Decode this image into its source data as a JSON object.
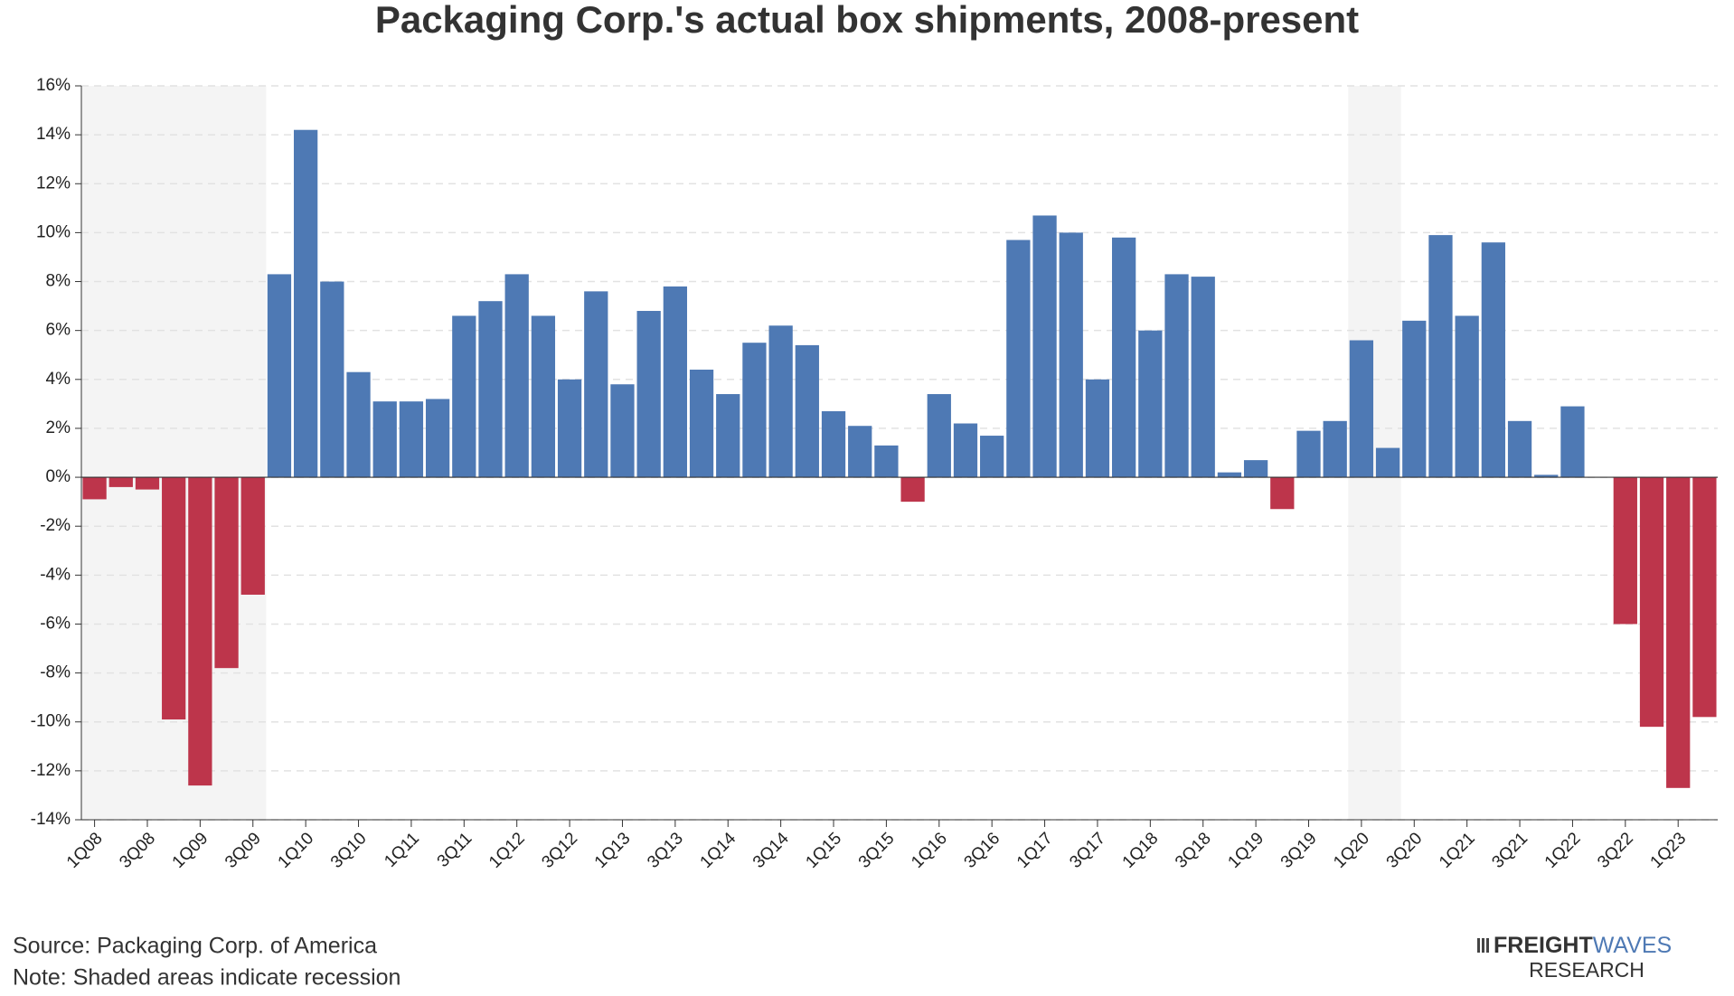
{
  "chart_data": {
    "type": "bar",
    "title": "Packaging Corp.'s actual box shipments, 2008-present",
    "categories": [
      "1Q08",
      null,
      "3Q08",
      null,
      "1Q09",
      null,
      "3Q09",
      null,
      "1Q10",
      null,
      "3Q10",
      null,
      "1Q11",
      null,
      "3Q11",
      null,
      "1Q12",
      null,
      "3Q12",
      null,
      "1Q13",
      null,
      "3Q13",
      null,
      "1Q14",
      null,
      "3Q14",
      null,
      "1Q15",
      null,
      "3Q15",
      null,
      "1Q16",
      null,
      "3Q16",
      null,
      "1Q17",
      null,
      "3Q17",
      null,
      "1Q18",
      null,
      "3Q18",
      null,
      "1Q19",
      null,
      "3Q19",
      null,
      "1Q20",
      null,
      "3Q20",
      null,
      "1Q21",
      null,
      "3Q21",
      null,
      "1Q22",
      null,
      "3Q22",
      null,
      "1Q23",
      null
    ],
    "values": [
      -0.9,
      -0.4,
      -0.5,
      -9.9,
      -12.6,
      -7.8,
      -4.8,
      8.3,
      14.2,
      8.0,
      4.3,
      3.1,
      3.1,
      3.2,
      6.6,
      7.2,
      8.3,
      6.6,
      4.0,
      7.6,
      3.8,
      6.8,
      7.8,
      4.4,
      3.4,
      5.5,
      6.2,
      5.4,
      2.7,
      2.1,
      1.3,
      -1.0,
      3.4,
      2.2,
      1.7,
      9.7,
      10.7,
      10.0,
      4.0,
      9.8,
      6.0,
      8.3,
      8.2,
      0.2,
      0.7,
      -1.3,
      1.9,
      2.3,
      5.6,
      1.2,
      6.4,
      9.9,
      6.6,
      9.6,
      2.3,
      0.1,
      2.9,
      0,
      -6.0,
      -10.2,
      -12.7,
      -9.8
    ],
    "positive_color": "#4e79b4",
    "negative_color": "#bd354b",
    "recessions": [
      {
        "start": 0,
        "end": 6
      },
      {
        "start": 48,
        "end": 49
      }
    ],
    "ylim": [
      -14,
      16
    ],
    "yticks": [
      {
        "value": -14,
        "label": "-14%"
      },
      {
        "value": -12,
        "label": "-12%"
      },
      {
        "value": -10,
        "label": "-10%"
      },
      {
        "value": -8,
        "label": "-8%"
      },
      {
        "value": -6,
        "label": "-6%"
      },
      {
        "value": -4,
        "label": "-4%"
      },
      {
        "value": -2,
        "label": "-2%"
      },
      {
        "value": 0,
        "label": "0%"
      },
      {
        "value": 2,
        "label": "2%"
      },
      {
        "value": 4,
        "label": "4%"
      },
      {
        "value": 6,
        "label": "6%"
      },
      {
        "value": 8,
        "label": "8%"
      },
      {
        "value": 10,
        "label": "10%"
      },
      {
        "value": 12,
        "label": "12%"
      },
      {
        "value": 14,
        "label": "14%"
      },
      {
        "value": 16,
        "label": "16%"
      }
    ],
    "grid": true,
    "source": "Source: Packaging Corp. of America",
    "note": "Note: Shaded areas indicate recession",
    "logo": {
      "part1": "FREIGHT",
      "part2": "WAVES",
      "sub": "RESEARCH"
    }
  }
}
